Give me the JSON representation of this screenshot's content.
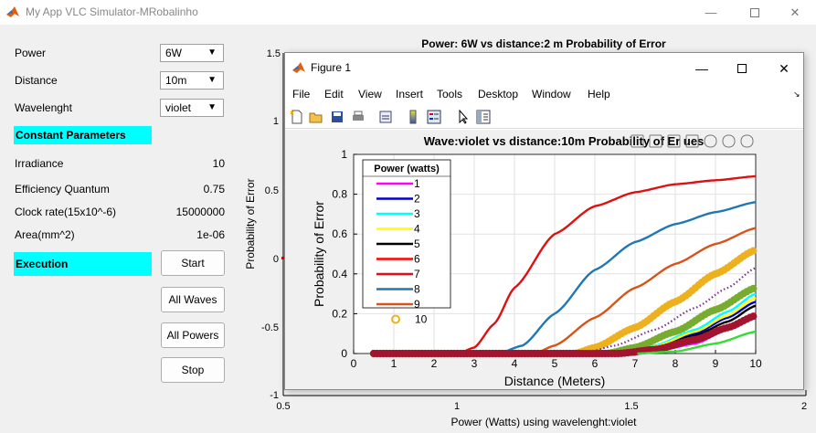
{
  "window": {
    "title": "My App VLC Simulator-MRobalinho"
  },
  "inputs": [
    {
      "label": "Power",
      "value": "6W"
    },
    {
      "label": "Distance",
      "value": "10m"
    },
    {
      "label": "Wavelenght",
      "value": "violet"
    }
  ],
  "constant_header": "Constant Parameters",
  "constants": [
    {
      "label": "Irradiance",
      "value": "10"
    },
    {
      "label": "Efficiency Quantum",
      "value": "0.75"
    },
    {
      "label": "Clock rate(15x10^-6)",
      "value": "15000000"
    },
    {
      "label": "Area(mm^2)",
      "value": "1e-06"
    }
  ],
  "execution_header": "Execution",
  "buttons": {
    "start": "Start",
    "all_waves": "All Waves",
    "all_powers": "All Powers",
    "stop": "Stop"
  },
  "main_axes": {
    "title": "Power: 6W   vs distance:2 m Probability of Error",
    "xlabel": "Power (Watts) using wavelenght:violet",
    "ylabel": "Probability of Error",
    "xticks": [
      "0.5",
      "1",
      "1.5",
      "2"
    ],
    "yticks": [
      "1.5",
      "1",
      "0.5",
      "0",
      "-0.5",
      "-1"
    ]
  },
  "figure": {
    "title": "Figure 1",
    "menu": [
      "File",
      "Edit",
      "View",
      "Insert",
      "Tools",
      "Desktop",
      "Window",
      "Help"
    ],
    "icons": [
      "new-file-icon",
      "open-folder-icon",
      "save-icon",
      "print-icon",
      "link-icon",
      "colorbar-icon",
      "legend-icon",
      "pointer-icon",
      "property-inspector-icon"
    ]
  },
  "chart_data": {
    "type": "line",
    "title": "Wave:violet vs distance:10m Probability of Er",
    "title_suffix": "ues",
    "xlabel": "Distance (Meters)",
    "ylabel": "Probability of Error",
    "xlim": [
      0,
      10
    ],
    "ylim": [
      0,
      1
    ],
    "xticks": [
      "0",
      "1",
      "2",
      "3",
      "4",
      "5",
      "6",
      "7",
      "8",
      "9",
      "10"
    ],
    "yticks": [
      "0",
      "0.2",
      "0.4",
      "0.6",
      "0.8",
      "1"
    ],
    "grid": true,
    "legend_title": "Power (watts)",
    "legend_position": "top-left",
    "series": [
      {
        "name": "1",
        "color": "#ff00ff",
        "style": "line",
        "points": [
          [
            0.5,
            0
          ],
          [
            6.6,
            0
          ],
          [
            7.5,
            0.01
          ],
          [
            8.5,
            0.05
          ],
          [
            9.3,
            0.12
          ],
          [
            10,
            0.2
          ]
        ]
      },
      {
        "name": "2",
        "color": "#0000cc",
        "style": "line",
        "points": [
          [
            0.5,
            0
          ],
          [
            6.6,
            0
          ],
          [
            7.5,
            0.03
          ],
          [
            8.5,
            0.1
          ],
          [
            9.3,
            0.18
          ],
          [
            10,
            0.26
          ]
        ]
      },
      {
        "name": "3",
        "color": "#00ffff",
        "style": "line",
        "points": [
          [
            0.5,
            0
          ],
          [
            6.6,
            0
          ],
          [
            7.5,
            0.04
          ],
          [
            8.5,
            0.12
          ],
          [
            9.3,
            0.21
          ],
          [
            10,
            0.3
          ]
        ]
      },
      {
        "name": "4",
        "color": "#ffff00",
        "style": "line",
        "points": [
          [
            0.5,
            0
          ],
          [
            6.6,
            0
          ],
          [
            7.5,
            0.035
          ],
          [
            8.5,
            0.11
          ],
          [
            9.3,
            0.19
          ],
          [
            10,
            0.28
          ]
        ]
      },
      {
        "name": "5",
        "color": "#000000",
        "style": "line",
        "points": [
          [
            0.5,
            0
          ],
          [
            6.6,
            0
          ],
          [
            7.5,
            0.03
          ],
          [
            8.5,
            0.09
          ],
          [
            9.3,
            0.16
          ],
          [
            10,
            0.24
          ]
        ]
      },
      {
        "name": "6",
        "color": "#ff0000",
        "style": "line",
        "points": [
          [
            0.5,
            0
          ],
          [
            6.6,
            0
          ],
          [
            7.5,
            0.025
          ],
          [
            8.5,
            0.08
          ],
          [
            9.3,
            0.14
          ],
          [
            10,
            0.2
          ]
        ]
      },
      {
        "name": "7",
        "color": "#e01010",
        "style": "line",
        "points": [
          [
            0.5,
            0
          ],
          [
            2.6,
            0
          ],
          [
            3.0,
            0.03
          ],
          [
            3.5,
            0.15
          ],
          [
            4.0,
            0.33
          ],
          [
            5.0,
            0.6
          ],
          [
            6.0,
            0.74
          ],
          [
            7.0,
            0.81
          ],
          [
            8.0,
            0.85
          ],
          [
            9.0,
            0.87
          ],
          [
            10,
            0.89
          ]
        ]
      },
      {
        "name": "8",
        "color": "#1f77b4",
        "style": "line",
        "points": [
          [
            0.5,
            0
          ],
          [
            3.6,
            0
          ],
          [
            4.2,
            0.04
          ],
          [
            5.0,
            0.2
          ],
          [
            6.0,
            0.42
          ],
          [
            7.0,
            0.56
          ],
          [
            8.0,
            0.65
          ],
          [
            9.0,
            0.71
          ],
          [
            10,
            0.76
          ]
        ]
      },
      {
        "name": "9",
        "color": "#d95319",
        "style": "line",
        "points": [
          [
            0.5,
            0
          ],
          [
            4.5,
            0
          ],
          [
            5.0,
            0.04
          ],
          [
            6.0,
            0.18
          ],
          [
            7.0,
            0.33
          ],
          [
            8.0,
            0.45
          ],
          [
            9.0,
            0.55
          ],
          [
            10,
            0.63
          ]
        ]
      },
      {
        "name": "10",
        "color": "#edb120",
        "style": "markers",
        "points": [
          [
            0.5,
            0
          ],
          [
            5.5,
            0
          ],
          [
            6.0,
            0.03
          ],
          [
            7.0,
            0.13
          ],
          [
            8.0,
            0.26
          ],
          [
            9.0,
            0.4
          ],
          [
            10,
            0.52
          ]
        ]
      },
      {
        "name": "",
        "color": "#7e2f8e",
        "style": "dotted",
        "points": [
          [
            0.5,
            0
          ],
          [
            5.7,
            0
          ],
          [
            6.5,
            0.04
          ],
          [
            7.5,
            0.12
          ],
          [
            8.5,
            0.23
          ],
          [
            9.3,
            0.33
          ],
          [
            10,
            0.43
          ]
        ]
      },
      {
        "name": "",
        "color": "#77ac30",
        "style": "markers",
        "points": [
          [
            0.5,
            0
          ],
          [
            6.3,
            0
          ],
          [
            7.0,
            0.03
          ],
          [
            8.0,
            0.11
          ],
          [
            9.0,
            0.22
          ],
          [
            10,
            0.33
          ]
        ]
      },
      {
        "name": "",
        "color": "#a2142f",
        "style": "markers",
        "points": [
          [
            0.5,
            0
          ],
          [
            6.6,
            0
          ],
          [
            7.5,
            0.02
          ],
          [
            8.5,
            0.07
          ],
          [
            9.3,
            0.13
          ],
          [
            10,
            0.19
          ]
        ]
      },
      {
        "name": "",
        "color": "#33dd33",
        "style": "line",
        "points": [
          [
            0.5,
            0
          ],
          [
            7.0,
            0
          ],
          [
            8.0,
            0.01
          ],
          [
            9.0,
            0.05
          ],
          [
            10,
            0.11
          ]
        ]
      }
    ]
  }
}
